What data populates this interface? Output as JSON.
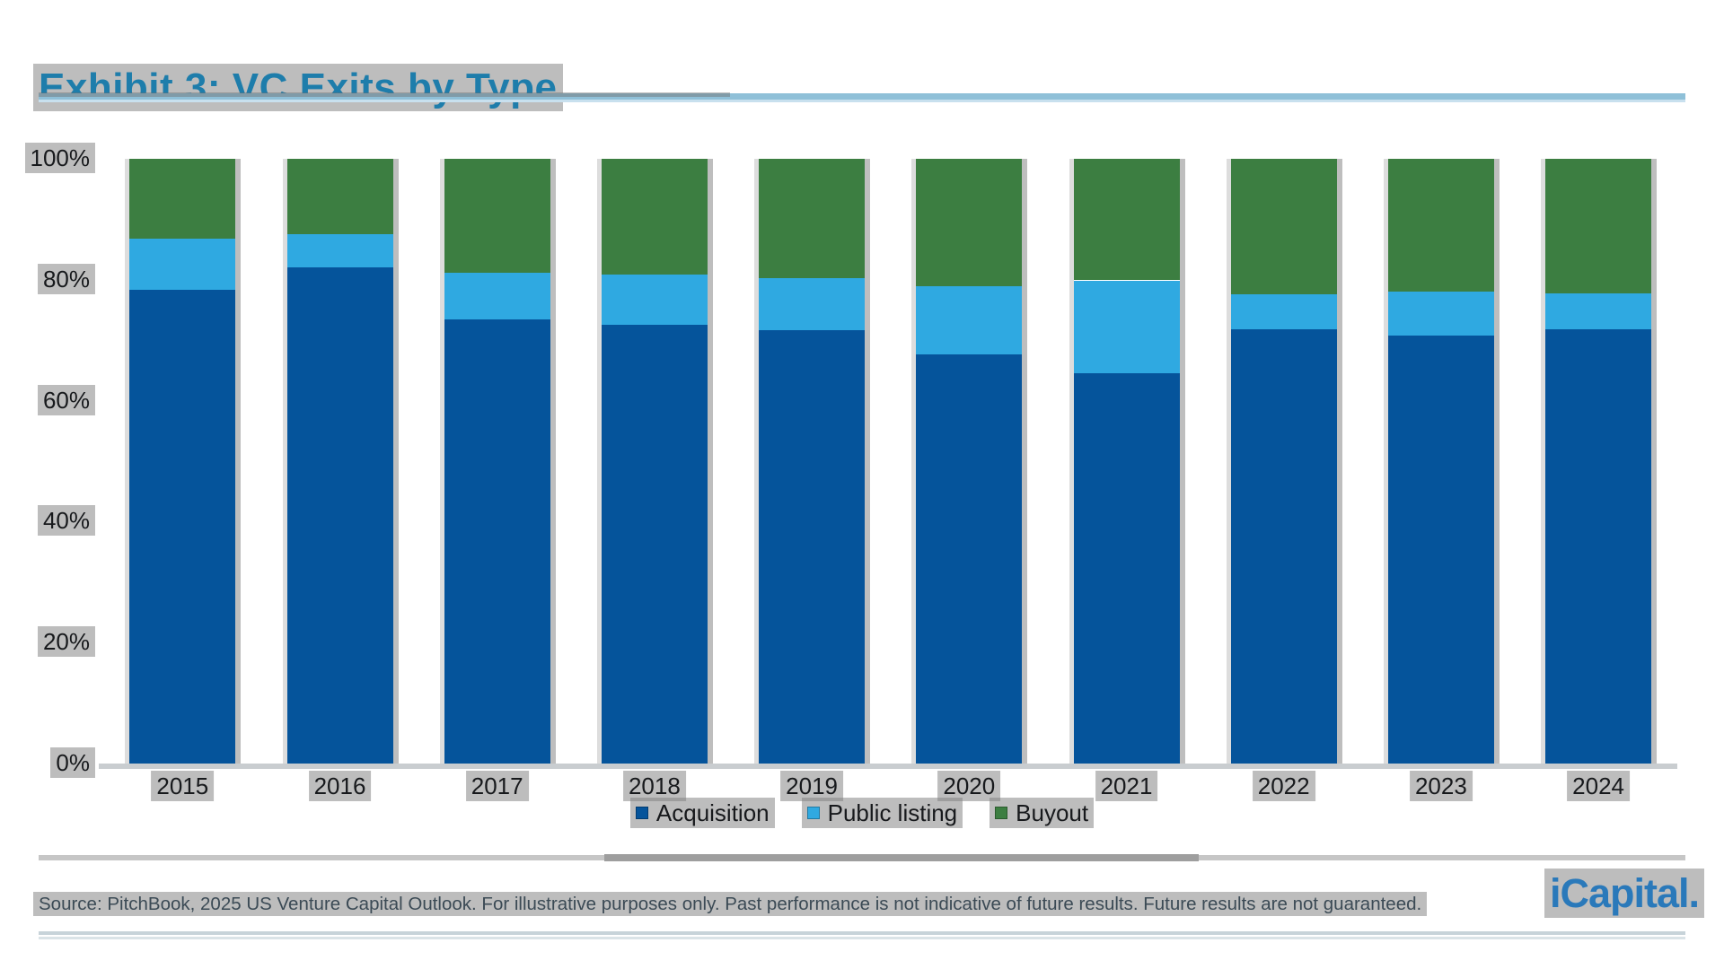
{
  "page": {
    "title": "Exhibit 3: VC Exits by Type",
    "source_note": "Source: PitchBook, 2025 US Venture Capital Outlook. For illustrative purposes only. Past performance is not indicative of future results. Future results are not guaranteed.",
    "logo_text": "iCapital."
  },
  "colors": {
    "title_text": "#1E7DAB",
    "title_rule": "#8FC0D8",
    "acquisition": "#05549B",
    "public_listing": "#2FA9E1",
    "buyout": "#3C7E41",
    "axis_line": "#C9CDD0",
    "divider": "#C6C6C6",
    "logo_blue": "#2A79BA",
    "source_text": "#3B4A55",
    "label_text": "#17191C",
    "text_highlight": "#808080"
  },
  "chart_data": {
    "type": "bar",
    "stacked": true,
    "unit": "%",
    "title": "Exhibit 3: VC Exits by Type",
    "categories": [
      "2015",
      "2016",
      "2017",
      "2018",
      "2019",
      "2020",
      "2021",
      "2022",
      "2023",
      "2024"
    ],
    "series": [
      {
        "name": "Acquisition",
        "color": "#05549B",
        "values": [
          78.3,
          82.1,
          73.4,
          72.6,
          71.7,
          67.7,
          64.6,
          71.8,
          70.7,
          71.8
        ]
      },
      {
        "name": "Public listing",
        "color": "#2FA9E1",
        "values": [
          8.5,
          5.4,
          7.7,
          8.3,
          8.5,
          11.3,
          15.3,
          5.8,
          7.4,
          5.9
        ]
      },
      {
        "name": "Buyout",
        "color": "#3C7E41",
        "values": [
          13.2,
          12.5,
          18.9,
          19.1,
          19.8,
          21.0,
          20.1,
          22.4,
          21.9,
          22.3
        ]
      }
    ],
    "xlabel": "",
    "ylabel": "",
    "ylim": [
      0,
      100
    ],
    "y_ticks": [
      "0%",
      "20%",
      "40%",
      "60%",
      "80%",
      "100%"
    ],
    "grid": false,
    "legend_position": "bottom",
    "legend": [
      "Acquisition",
      "Public listing",
      "Buyout"
    ]
  }
}
